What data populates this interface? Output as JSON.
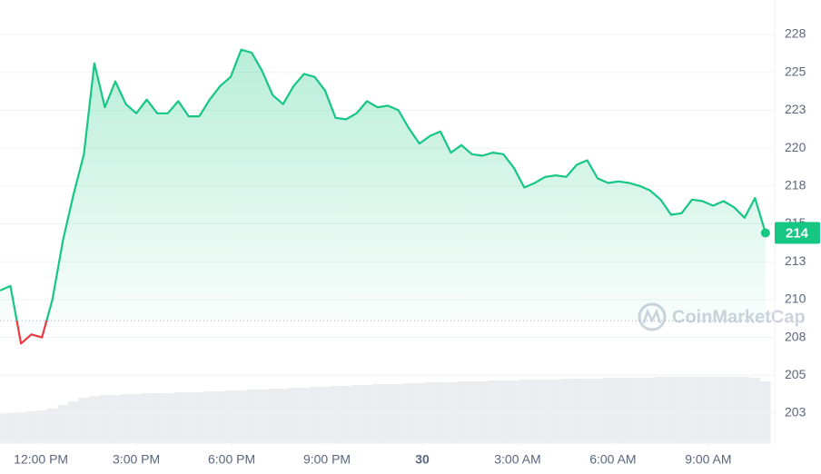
{
  "chart_data": {
    "type": "line",
    "watermark": "CoinMarketCap",
    "price_tag": "214",
    "baseline": 208.6,
    "color": "#16c784",
    "down_color": "#ea3943",
    "grid": true,
    "xlim": [
      -1.29,
      23.09
    ],
    "ylim": [
      200.52,
      229.78
    ],
    "xticks": [
      {
        "value": 0,
        "label": "12:00 PM"
      },
      {
        "value": 3,
        "label": "3:00 PM"
      },
      {
        "value": 6,
        "label": "6:00 PM"
      },
      {
        "value": 9,
        "label": "9:00 PM"
      },
      {
        "value": 12,
        "label": "30"
      },
      {
        "value": 15,
        "label": "3:00 AM"
      },
      {
        "value": 18,
        "label": "6:00 AM"
      },
      {
        "value": 21,
        "label": "9:00 AM"
      }
    ],
    "yticks": [
      {
        "value": 202.5,
        "label": "203"
      },
      {
        "value": 205,
        "label": "205"
      },
      {
        "value": 207.5,
        "label": "208"
      },
      {
        "value": 210,
        "label": "210"
      },
      {
        "value": 212.5,
        "label": "213"
      },
      {
        "value": 215,
        "label": "215"
      },
      {
        "value": 217.5,
        "label": "218"
      },
      {
        "value": 220,
        "label": "220"
      },
      {
        "value": 222.5,
        "label": "223"
      },
      {
        "value": 225,
        "label": "225"
      },
      {
        "value": 227.5,
        "label": "228"
      }
    ],
    "x": [
      -1.29,
      -0.96,
      -0.63,
      -0.3,
      0.03,
      0.36,
      0.69,
      1.02,
      1.35,
      1.68,
      2.01,
      2.34,
      2.67,
      3.0,
      3.33,
      3.66,
      3.99,
      4.32,
      4.65,
      4.98,
      5.31,
      5.64,
      5.97,
      6.3,
      6.63,
      6.96,
      7.29,
      7.62,
      7.95,
      8.28,
      8.61,
      8.94,
      9.27,
      9.6,
      9.93,
      10.26,
      10.59,
      10.92,
      11.25,
      11.58,
      11.91,
      12.24,
      12.57,
      12.9,
      13.23,
      13.56,
      13.89,
      14.22,
      14.55,
      14.88,
      15.21,
      15.54,
      15.87,
      16.2,
      16.53,
      16.86,
      17.19,
      17.52,
      17.85,
      18.18,
      18.51,
      18.84,
      19.17,
      19.5,
      19.83,
      20.16,
      20.49,
      20.82,
      21.15,
      21.48,
      21.81,
      22.14,
      22.47,
      22.8
    ],
    "values": [
      210.6,
      210.9,
      207.1,
      207.7,
      207.5,
      210.0,
      213.9,
      216.9,
      219.6,
      225.6,
      222.7,
      224.4,
      222.9,
      222.3,
      223.2,
      222.3,
      222.3,
      223.1,
      222.1,
      222.1,
      223.2,
      224.1,
      224.7,
      226.5,
      226.3,
      225.1,
      223.5,
      222.9,
      224.1,
      224.9,
      224.7,
      223.8,
      222.0,
      221.9,
      222.3,
      223.1,
      222.7,
      222.8,
      222.5,
      221.3,
      220.3,
      220.8,
      221.1,
      219.7,
      220.2,
      219.6,
      219.5,
      219.7,
      219.6,
      218.7,
      217.4,
      217.7,
      218.1,
      218.2,
      218.1,
      218.9,
      219.2,
      218.0,
      217.7,
      217.8,
      217.7,
      217.5,
      217.2,
      216.6,
      215.6,
      215.7,
      216.6,
      216.5,
      216.2,
      216.5,
      216.1,
      215.4,
      216.7,
      214.4
    ],
    "volume": [
      32,
      33,
      34,
      35,
      36,
      38,
      42,
      46,
      50,
      52,
      53,
      53,
      54,
      54,
      55,
      55,
      55,
      56,
      56,
      56,
      57,
      57,
      58,
      58,
      59,
      59,
      60,
      60,
      61,
      61,
      62,
      62,
      63,
      63,
      64,
      64,
      65,
      65,
      65,
      66,
      66,
      67,
      67,
      67,
      68,
      68,
      68,
      69,
      69,
      69,
      70,
      70,
      70,
      70,
      71,
      71,
      71,
      71,
      72,
      72,
      72,
      72,
      72,
      73,
      73,
      73,
      73,
      73,
      73,
      73,
      73,
      73,
      72,
      68
    ]
  }
}
